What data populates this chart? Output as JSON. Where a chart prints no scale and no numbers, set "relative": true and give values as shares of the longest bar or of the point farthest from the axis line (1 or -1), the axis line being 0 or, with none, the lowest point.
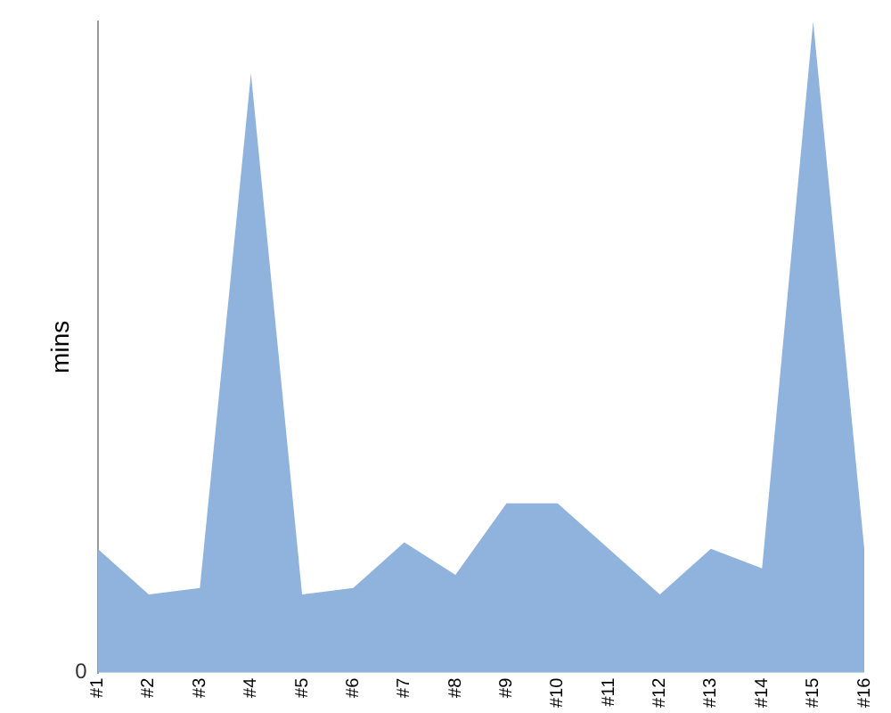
{
  "chart_data": {
    "type": "area",
    "relative": true,
    "ylabel": "mins",
    "annotations": [
      "0"
    ],
    "categories": [
      "#1",
      "#2",
      "#3",
      "#4",
      "#5",
      "#6",
      "#7",
      "#8",
      "#9",
      "#10",
      "#11",
      "#12",
      "#13",
      "#14",
      "#15",
      "#16"
    ],
    "series": [
      {
        "color": "#8fb3dc",
        "values": [
          0.19,
          0.12,
          0.13,
          0.92,
          0.12,
          0.13,
          0.2,
          0.15,
          0.26,
          0.26,
          0.19,
          0.12,
          0.19,
          0.16,
          1,
          0.19
        ]
      }
    ],
    "legend": false
  }
}
